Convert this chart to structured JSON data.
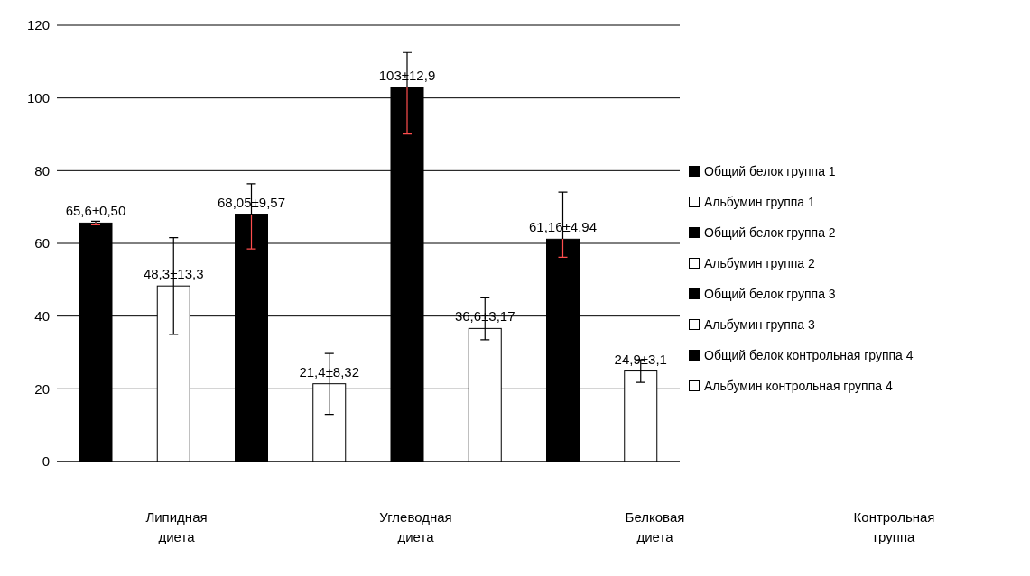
{
  "chart_data": {
    "type": "bar",
    "stacked": true,
    "categories": [
      null,
      null,
      null,
      null,
      null,
      null,
      null,
      null
    ],
    "series": [
      {
        "name": "Общий белок группа 1",
        "color": "#000000",
        "values": [
          65.6,
          null,
          null,
          null,
          null,
          null,
          null,
          null
        ],
        "errors": [
          [
            65.1,
            66.1
          ],
          null,
          null,
          null,
          null,
          null,
          null,
          null
        ],
        "value_labels": [
          "65,6±0,50",
          null,
          null,
          null,
          null,
          null,
          null,
          null
        ]
      },
      {
        "name": "Альбумин группа 1",
        "color": "#ffffff",
        "values": [
          null,
          48.3,
          null,
          null,
          null,
          null,
          null,
          null
        ],
        "errors": [
          null,
          [
            35,
            61.6
          ],
          null,
          null,
          null,
          null,
          null,
          null
        ],
        "value_labels": [
          null,
          "48,3±13,3",
          null,
          null,
          null,
          null,
          null,
          null
        ]
      },
      {
        "name": "Общий белок группа 2",
        "color": "#000000",
        "values": [
          null,
          null,
          68.05,
          null,
          null,
          null,
          null,
          null
        ],
        "errors": [
          null,
          null,
          [
            58.5,
            76.4
          ],
          null,
          null,
          null,
          null,
          null
        ],
        "value_labels": [
          null,
          null,
          "68,05±9,57",
          null,
          null,
          null,
          null,
          null
        ]
      },
      {
        "name": "Альбумин группа 2",
        "color": "#ffffff",
        "values": [
          null,
          null,
          null,
          21.4,
          null,
          null,
          null,
          null
        ],
        "errors": [
          null,
          null,
          null,
          [
            13,
            29.7
          ],
          null,
          null,
          null,
          null
        ],
        "value_labels": [
          null,
          null,
          null,
          "21,4±8,32",
          null,
          null,
          null,
          null
        ]
      },
      {
        "name": "Общий белок группа 3",
        "color": "#000000",
        "values": [
          null,
          null,
          null,
          null,
          103,
          null,
          null,
          null
        ],
        "errors": [
          null,
          null,
          null,
          null,
          [
            90.1,
            112.5
          ],
          null,
          null,
          null
        ],
        "value_labels": [
          null,
          null,
          null,
          null,
          "103±12,9",
          null,
          null,
          null
        ]
      },
      {
        "name": "Альбумин группа 3",
        "color": "#ffffff",
        "values": [
          null,
          null,
          null,
          null,
          null,
          36.6,
          null,
          null
        ],
        "errors": [
          null,
          null,
          null,
          null,
          null,
          [
            33.5,
            45
          ],
          null,
          null
        ],
        "value_labels": [
          null,
          null,
          null,
          null,
          null,
          "36,6±3,17",
          null,
          null
        ]
      },
      {
        "name": "Общий белок контрольная группа 4",
        "color": "#000000",
        "values": [
          null,
          null,
          null,
          null,
          null,
          null,
          61.16,
          null
        ],
        "errors": [
          null,
          null,
          null,
          null,
          null,
          null,
          [
            56.2,
            74.1
          ],
          null
        ],
        "value_labels": [
          null,
          null,
          null,
          null,
          null,
          null,
          "61,16±4,94",
          null
        ]
      },
      {
        "name": "Альбумин контрольная группа 4",
        "color": "#ffffff",
        "values": [
          null,
          null,
          null,
          null,
          null,
          null,
          null,
          24.9
        ],
        "errors": [
          null,
          null,
          null,
          null,
          null,
          null,
          null,
          [
            21.8,
            28
          ]
        ],
        "value_labels": [
          null,
          null,
          null,
          null,
          null,
          null,
          null,
          "24,9±3,1"
        ]
      }
    ],
    "ylim": [
      0,
      120
    ],
    "yticks": [
      0,
      20,
      40,
      60,
      80,
      100,
      120
    ],
    "grid": "y",
    "legend": "right",
    "tick_labels": "y",
    "annotations": [
      "Липидная диета",
      "Углеводная диета",
      "Белковая диета",
      "Контрольная группа"
    ]
  }
}
